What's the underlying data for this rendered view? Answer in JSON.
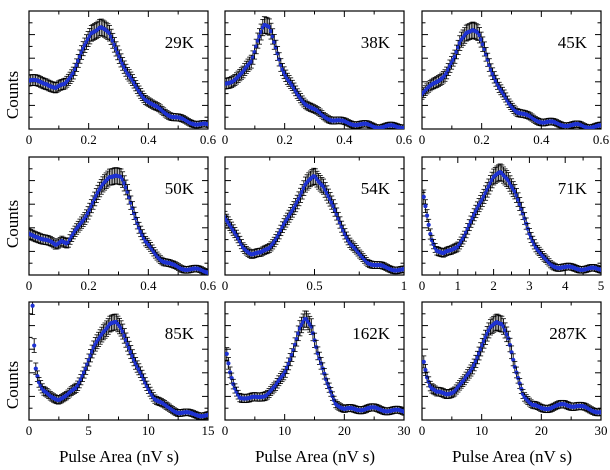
{
  "figure": {
    "ylabel": "Counts",
    "xlabel": "Pulse Area (nV s)"
  },
  "colors": {
    "points": "#1e32d2",
    "errorbars": "#000000",
    "frame": "#000000"
  },
  "chart_data": [
    {
      "type": "scatter",
      "label": "29K",
      "xticks": [
        "0",
        "0.2",
        "0.4",
        "0.6"
      ],
      "xtick_values": [
        0,
        0.2,
        0.4,
        0.6
      ],
      "xlim": [
        0,
        0.6
      ],
      "ylim": [
        0,
        1.0
      ],
      "grid": false,
      "x": [
        0,
        0.03,
        0.06,
        0.09,
        0.12,
        0.15,
        0.18,
        0.21,
        0.24,
        0.27,
        0.3,
        0.33,
        0.36,
        0.39,
        0.42,
        0.45,
        0.48,
        0.51,
        0.54,
        0.57,
        0.6
      ],
      "y": [
        0.41,
        0.4,
        0.39,
        0.34,
        0.38,
        0.49,
        0.66,
        0.82,
        0.87,
        0.8,
        0.64,
        0.47,
        0.35,
        0.26,
        0.19,
        0.15,
        0.11,
        0.08,
        0.06,
        0.04,
        0.03
      ]
    },
    {
      "type": "scatter",
      "label": "38K",
      "xticks": [
        "0",
        "0.2",
        "0.4",
        "0.6"
      ],
      "xtick_values": [
        0,
        0.2,
        0.4,
        0.6
      ],
      "xlim": [
        0,
        0.6
      ],
      "ylim": [
        0,
        1.0
      ],
      "grid": false,
      "x": [
        0,
        0.03,
        0.06,
        0.09,
        0.11,
        0.13,
        0.15,
        0.17,
        0.19,
        0.21,
        0.24,
        0.27,
        0.3,
        0.33,
        0.36,
        0.39,
        0.42,
        0.45,
        0.48,
        0.51,
        0.54,
        0.57,
        0.6
      ],
      "y": [
        0.38,
        0.42,
        0.47,
        0.58,
        0.76,
        0.88,
        0.85,
        0.7,
        0.53,
        0.42,
        0.3,
        0.22,
        0.16,
        0.11,
        0.08,
        0.06,
        0.05,
        0.04,
        0.03,
        0.02,
        0.02,
        0.02,
        0.02
      ]
    },
    {
      "type": "scatter",
      "label": "45K",
      "xticks": [
        "0",
        "0.2",
        "0.4",
        "0.6"
      ],
      "xtick_values": [
        0,
        0.2,
        0.4,
        0.6
      ],
      "xlim": [
        0,
        0.6
      ],
      "ylim": [
        0,
        1.0
      ],
      "grid": false,
      "x": [
        0,
        0.02,
        0.05,
        0.08,
        0.11,
        0.13,
        0.15,
        0.17,
        0.19,
        0.21,
        0.23,
        0.26,
        0.29,
        0.32,
        0.35,
        0.38,
        0.41,
        0.44,
        0.47,
        0.5,
        0.53,
        0.56,
        0.6
      ],
      "y": [
        0.3,
        0.34,
        0.4,
        0.47,
        0.6,
        0.75,
        0.83,
        0.84,
        0.8,
        0.67,
        0.52,
        0.34,
        0.22,
        0.15,
        0.11,
        0.08,
        0.06,
        0.05,
        0.04,
        0.03,
        0.03,
        0.02,
        0.02
      ]
    },
    {
      "type": "scatter",
      "label": "50K",
      "xticks": [
        "0",
        "0.2",
        "0.4",
        "0.6"
      ],
      "xtick_values": [
        0,
        0.2,
        0.4,
        0.6
      ],
      "xlim": [
        0,
        0.6
      ],
      "ylim": [
        0,
        1.0
      ],
      "grid": false,
      "x": [
        0,
        0.03,
        0.06,
        0.09,
        0.11,
        0.13,
        0.16,
        0.19,
        0.22,
        0.25,
        0.27,
        0.29,
        0.31,
        0.33,
        0.35,
        0.37,
        0.39,
        0.42,
        0.45,
        0.48,
        0.51,
        0.54,
        0.57,
        0.6
      ],
      "y": [
        0.34,
        0.33,
        0.29,
        0.25,
        0.3,
        0.27,
        0.38,
        0.5,
        0.64,
        0.77,
        0.84,
        0.85,
        0.82,
        0.7,
        0.55,
        0.4,
        0.28,
        0.19,
        0.12,
        0.08,
        0.06,
        0.05,
        0.04,
        0.03
      ]
    },
    {
      "type": "scatter",
      "label": "54K",
      "xticks": [
        "0",
        "0.5",
        "1"
      ],
      "xtick_values": [
        0,
        0.5,
        1
      ],
      "xlim": [
        0,
        1
      ],
      "ylim": [
        0,
        1.0
      ],
      "grid": false,
      "x": [
        0,
        0.05,
        0.1,
        0.15,
        0.2,
        0.25,
        0.3,
        0.35,
        0.4,
        0.45,
        0.5,
        0.55,
        0.6,
        0.65,
        0.7,
        0.75,
        0.8,
        0.85,
        0.9,
        0.95,
        1.0
      ],
      "y": [
        0.5,
        0.36,
        0.24,
        0.18,
        0.18,
        0.24,
        0.34,
        0.47,
        0.62,
        0.76,
        0.84,
        0.76,
        0.59,
        0.42,
        0.27,
        0.17,
        0.11,
        0.08,
        0.06,
        0.05,
        0.04
      ]
    },
    {
      "type": "scatter",
      "label": "71K",
      "xticks": [
        "0",
        "1",
        "2",
        "3",
        "4",
        "5"
      ],
      "xtick_values": [
        0,
        1,
        2,
        3,
        4,
        5
      ],
      "xlim": [
        0,
        5
      ],
      "ylim": [
        0,
        1.0
      ],
      "grid": false,
      "x": [
        0.05,
        0.15,
        0.25,
        0.4,
        0.6,
        0.8,
        1.0,
        1.2,
        1.4,
        1.6,
        1.8,
        2.0,
        2.2,
        2.4,
        2.6,
        2.8,
        3.0,
        3.2,
        3.4,
        3.6,
        3.8,
        4.0,
        4.3,
        4.6,
        5.0
      ],
      "y": [
        0.65,
        0.48,
        0.32,
        0.22,
        0.18,
        0.2,
        0.25,
        0.34,
        0.46,
        0.6,
        0.72,
        0.82,
        0.87,
        0.82,
        0.7,
        0.53,
        0.36,
        0.23,
        0.14,
        0.09,
        0.07,
        0.06,
        0.06,
        0.05,
        0.05
      ]
    },
    {
      "type": "scatter",
      "label": "85K",
      "xticks": [
        "0",
        "5",
        "10",
        "15"
      ],
      "xtick_values": [
        0,
        5,
        10,
        15
      ],
      "xlim": [
        0,
        15
      ],
      "ylim": [
        0,
        1.0
      ],
      "grid": false,
      "x": [
        0.3,
        0.5,
        0.8,
        1.2,
        1.8,
        2.5,
        3.2,
        4.0,
        4.8,
        5.5,
        6.2,
        6.8,
        7.3,
        7.8,
        8.4,
        9.0,
        9.8,
        10.6,
        11.5,
        12.5,
        13.5,
        15.0
      ],
      "y": [
        0.98,
        0.48,
        0.33,
        0.24,
        0.2,
        0.18,
        0.2,
        0.28,
        0.45,
        0.62,
        0.75,
        0.82,
        0.82,
        0.76,
        0.62,
        0.46,
        0.3,
        0.18,
        0.11,
        0.07,
        0.05,
        0.04
      ]
    },
    {
      "type": "scatter",
      "label": "162K",
      "xticks": [
        "0",
        "10",
        "20",
        "30"
      ],
      "xtick_values": [
        0,
        10,
        20,
        30
      ],
      "xlim": [
        0,
        30
      ],
      "ylim": [
        0,
        1.0
      ],
      "grid": false,
      "x": [
        0.3,
        0.8,
        1.5,
        2.5,
        4,
        5.5,
        7,
        8.5,
        10,
        11.5,
        12.5,
        13.5,
        14.5,
        15.5,
        17,
        18.5,
        20,
        22,
        24,
        26,
        28,
        30
      ],
      "y": [
        0.55,
        0.4,
        0.28,
        0.2,
        0.18,
        0.19,
        0.22,
        0.28,
        0.4,
        0.6,
        0.76,
        0.86,
        0.8,
        0.58,
        0.32,
        0.15,
        0.09,
        0.09,
        0.1,
        0.09,
        0.08,
        0.07
      ]
    },
    {
      "type": "scatter",
      "label": "287K",
      "xticks": [
        "0",
        "10",
        "20",
        "30"
      ],
      "xtick_values": [
        0,
        10,
        20,
        30
      ],
      "xlim": [
        0,
        30
      ],
      "ylim": [
        0,
        1.0
      ],
      "grid": false,
      "x": [
        0.3,
        0.8,
        1.5,
        2.5,
        4,
        5.5,
        7,
        8.5,
        10,
        11.5,
        12.5,
        13.5,
        14.5,
        15.5,
        17,
        18.5,
        20,
        22,
        24,
        26,
        28,
        30
      ],
      "y": [
        0.5,
        0.38,
        0.28,
        0.23,
        0.22,
        0.25,
        0.32,
        0.45,
        0.62,
        0.78,
        0.84,
        0.82,
        0.68,
        0.45,
        0.22,
        0.12,
        0.1,
        0.11,
        0.13,
        0.12,
        0.09,
        0.07
      ]
    }
  ]
}
